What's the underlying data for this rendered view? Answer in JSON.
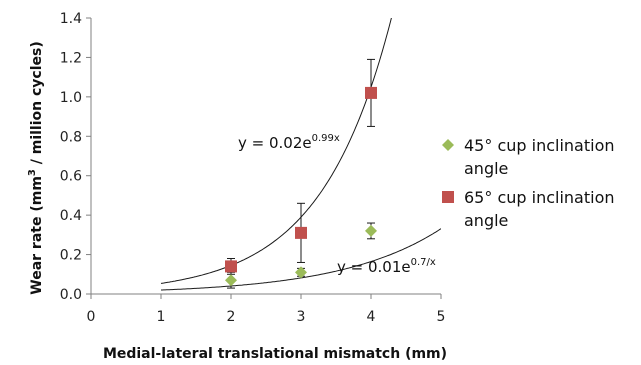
{
  "chart_data": {
    "type": "scatter",
    "xlabel": "Medial-lateral translational mismatch (mm)",
    "ylabel_parts": [
      "Wear rate (mm",
      "3",
      " / million cycles)"
    ],
    "xlim": [
      0,
      5
    ],
    "ylim": [
      0,
      1.4
    ],
    "x_ticks": [
      "0",
      "1",
      "2",
      "3",
      "4",
      "5"
    ],
    "y_ticks": [
      "0.0",
      "0.2",
      "0.4",
      "0.6",
      "0.8",
      "1.0",
      "1.2",
      "1.4"
    ],
    "grid": false,
    "legend_position": "right",
    "series": [
      {
        "name": "45° cup inclination angle",
        "marker": "diamond",
        "color": "#9bbb59",
        "x": [
          2,
          3,
          4
        ],
        "y": [
          0.07,
          0.11,
          0.32
        ],
        "err": [
          0.04,
          0.02,
          0.04
        ],
        "trend": {
          "a": 0.01,
          "b": 0.7,
          "label_parts": [
            "y = 0.01e",
            "0.7/x"
          ]
        }
      },
      {
        "name": "65° cup inclination angle",
        "marker": "square",
        "color": "#c0504d",
        "x": [
          2,
          3,
          4
        ],
        "y": [
          0.14,
          0.31,
          1.02
        ],
        "err": [
          0.04,
          0.15,
          0.17
        ],
        "trend": {
          "a": 0.02,
          "b": 0.99,
          "label_parts": [
            "y = 0.02e",
            "0.99x"
          ]
        }
      }
    ]
  }
}
